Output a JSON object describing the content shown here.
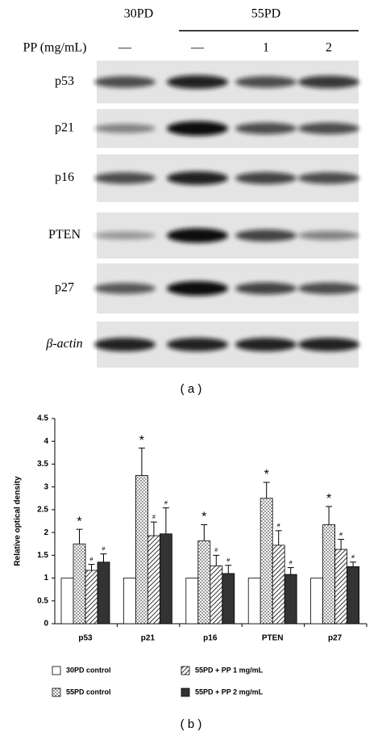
{
  "blot": {
    "caption": "( a )",
    "group_labels": [
      "30PD",
      "55PD"
    ],
    "treatment_label": "PP (mg/mL)",
    "lanes": [
      "—",
      "—",
      "1",
      "2"
    ],
    "proteins": [
      "p53",
      "p21",
      "p16",
      "PTEN",
      "p27",
      "β-actin"
    ]
  },
  "chart_data": {
    "type": "bar",
    "caption": "( b )",
    "y_label": "Relative optical density",
    "categories": [
      "p53",
      "p21",
      "p16",
      "PTEN",
      "p27"
    ],
    "ylim": [
      0,
      4.5
    ],
    "yticks": [
      0,
      0.5,
      1,
      1.5,
      2,
      2.5,
      3,
      3.5,
      4,
      4.5
    ],
    "series": [
      {
        "name": "30PD control",
        "color": "#ffffff",
        "pattern": "solid",
        "values": [
          1,
          1,
          1,
          1,
          1
        ]
      },
      {
        "name": "55PD control",
        "color": "#ffffff",
        "pattern": "dots",
        "annotation": "*",
        "values": [
          1.75,
          3.25,
          1.82,
          2.75,
          2.17
        ],
        "errors": [
          0.32,
          0.6,
          0.35,
          0.35,
          0.4
        ]
      },
      {
        "name": "55PD + PP 1 mg/mL",
        "color": "#ffffff",
        "pattern": "hatch",
        "annotation": "#",
        "values": [
          1.17,
          1.93,
          1.27,
          1.72,
          1.63
        ],
        "errors": [
          0.13,
          0.3,
          0.23,
          0.32,
          0.22
        ]
      },
      {
        "name": "55PD + PP 2 mg/mL",
        "color": "#333333",
        "pattern": "solid",
        "annotation": "#",
        "values": [
          1.35,
          1.97,
          1.1,
          1.08,
          1.25
        ],
        "errors": [
          0.18,
          0.57,
          0.18,
          0.15,
          0.1
        ]
      }
    ]
  }
}
